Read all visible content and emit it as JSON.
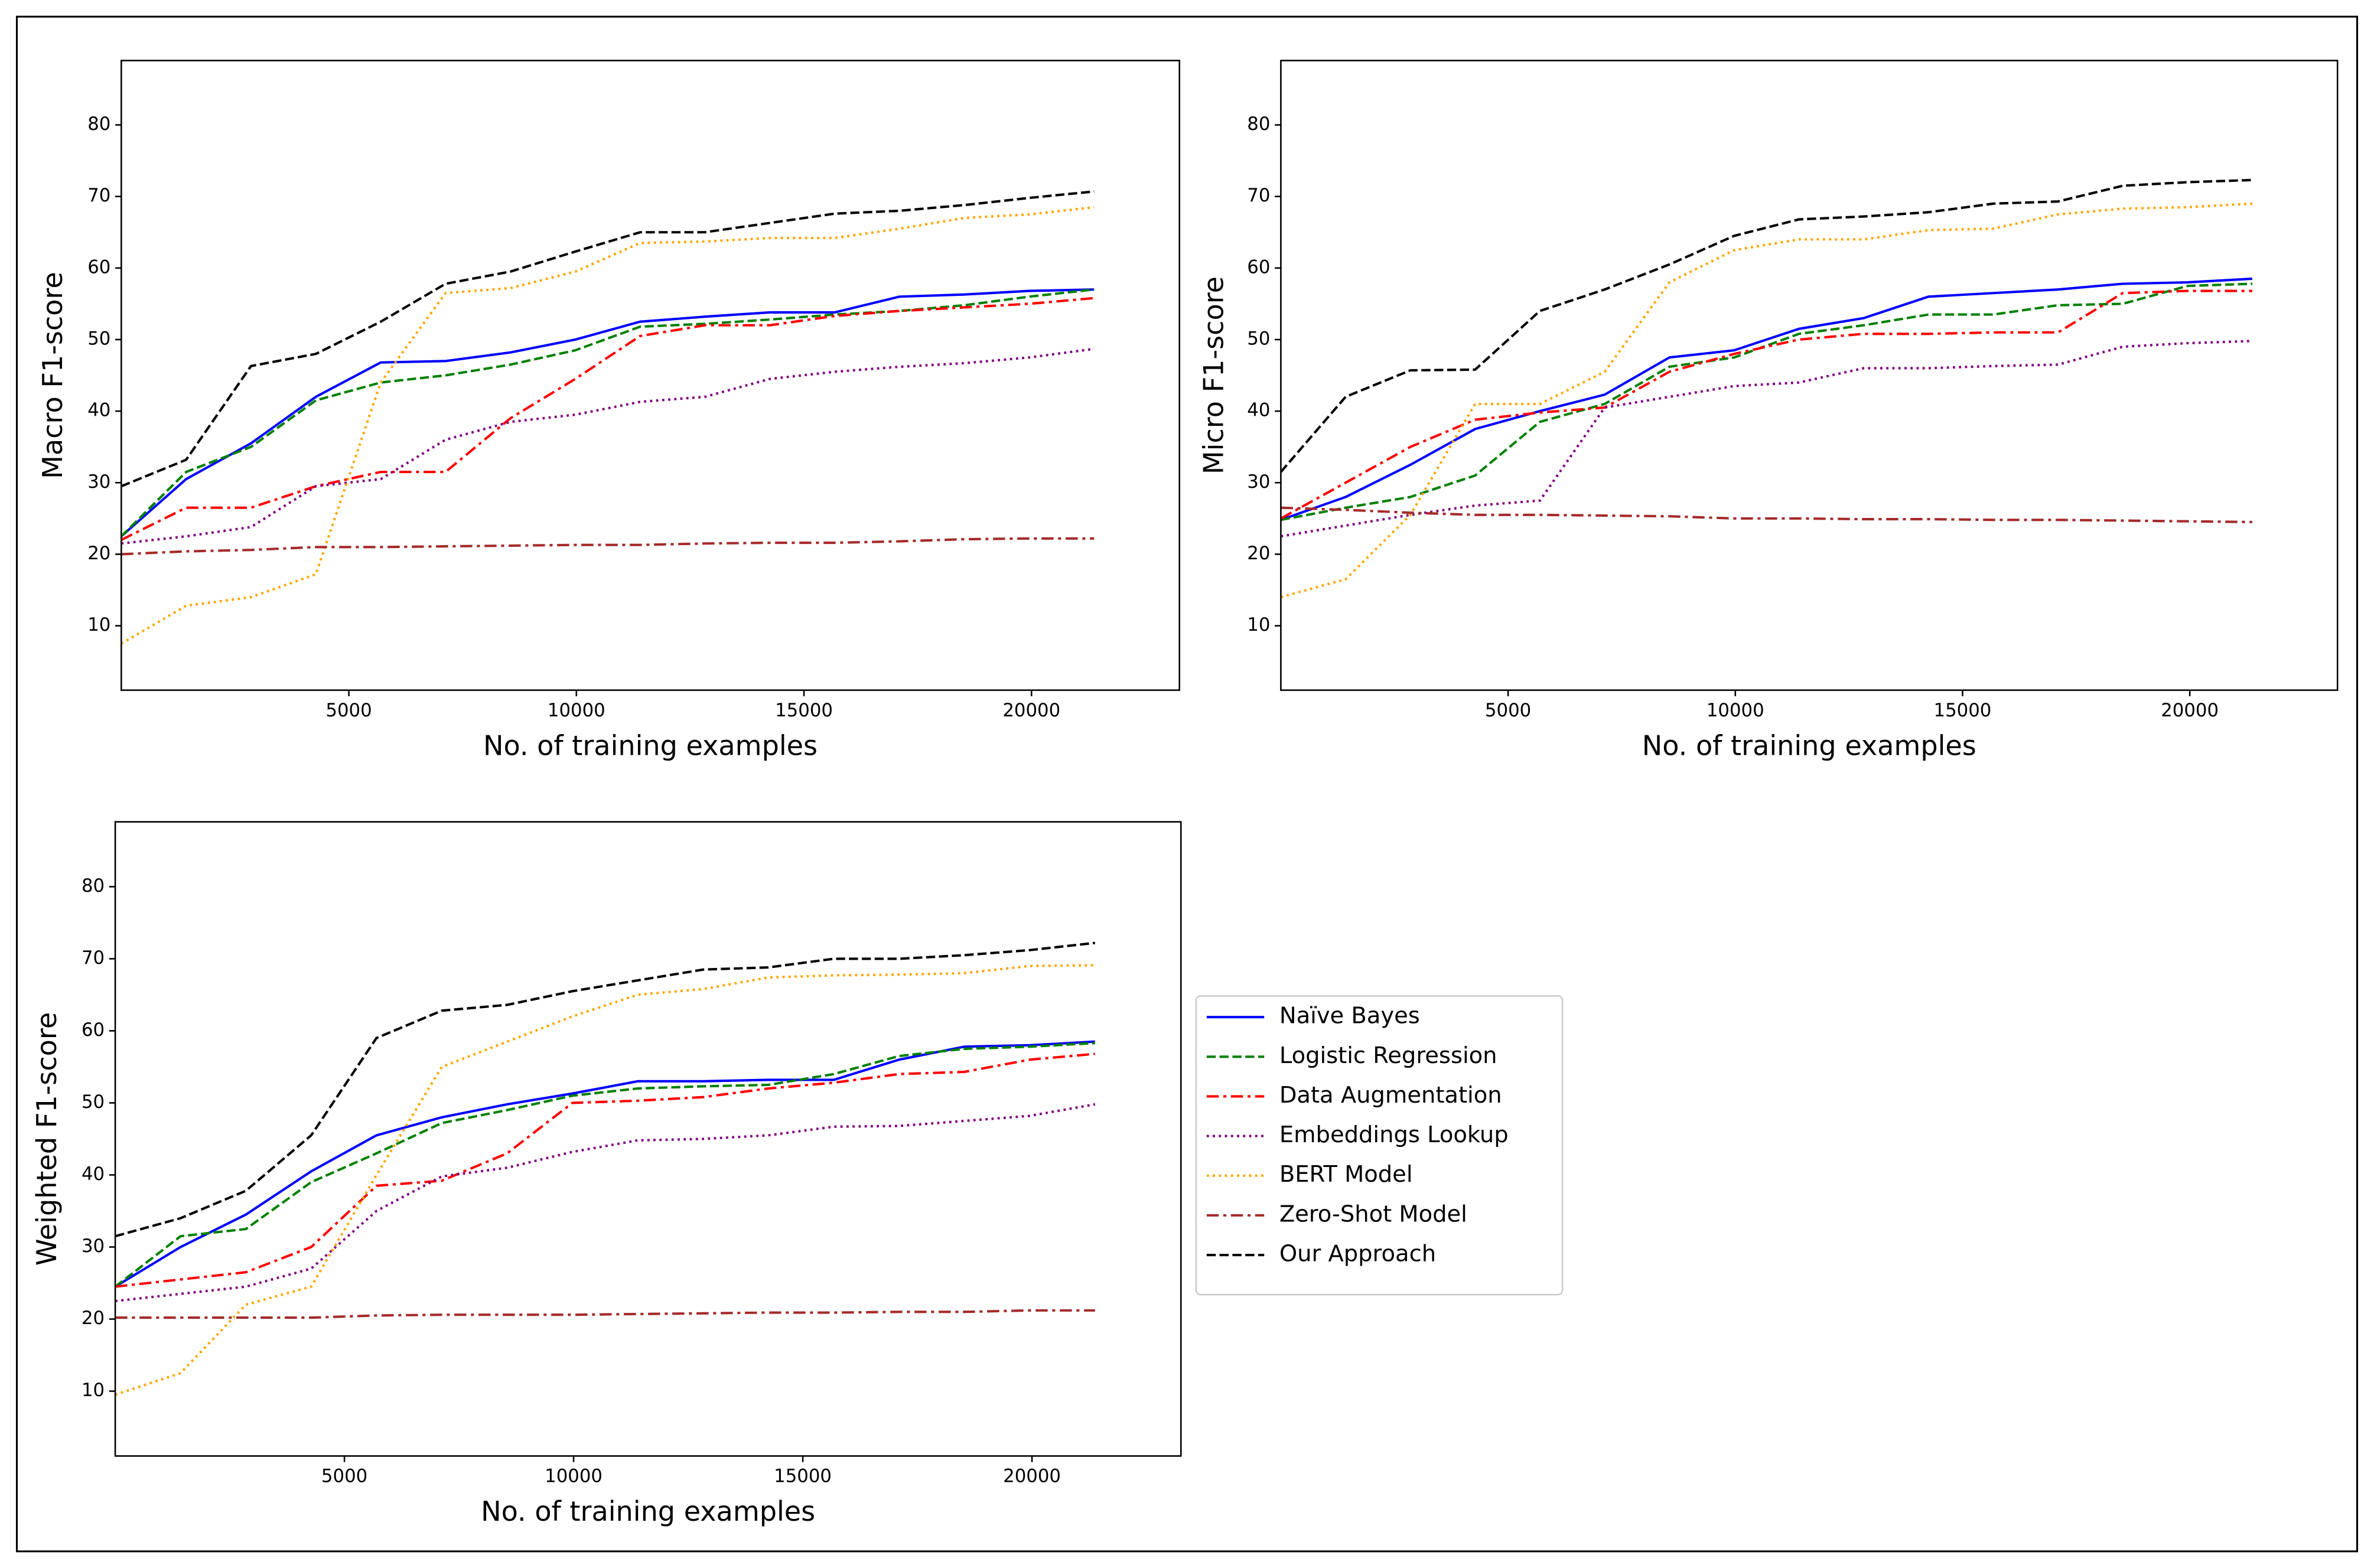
{
  "chart_data": [
    {
      "type": "line",
      "y_label": "Macro F1-score",
      "x_label": "No. of training examples",
      "x": [
        0,
        1425,
        2850,
        4275,
        5700,
        7125,
        8550,
        9975,
        11400,
        12825,
        14250,
        15675,
        17100,
        18525,
        19950,
        21375
      ],
      "xlim": [
        0,
        23250
      ],
      "ylim": [
        1,
        89
      ],
      "xticks": [
        5000,
        10000,
        15000,
        20000
      ],
      "yticks": [
        10,
        20,
        30,
        40,
        50,
        60,
        70,
        80
      ],
      "series": [
        {
          "color": "#0000ff",
          "linestyle": "solid",
          "values": [
            22.5,
            30.5,
            35.5,
            42,
            46.8,
            47,
            48.2,
            50,
            52.5,
            53.2,
            53.8,
            53.8,
            56,
            56.3,
            56.8,
            57
          ]
        },
        {
          "color": "#008000",
          "linestyle": "dashed",
          "values": [
            22.5,
            31.5,
            35,
            41.5,
            44,
            45,
            46.5,
            48.5,
            51.8,
            52.2,
            52.8,
            53.5,
            54,
            54.8,
            56,
            57
          ]
        },
        {
          "color": "#ff0000",
          "linestyle": "dashdot",
          "values": [
            22,
            26.5,
            26.5,
            29.5,
            31.5,
            31.5,
            39,
            44.5,
            50.5,
            52,
            52,
            53.3,
            54,
            54.5,
            55,
            55.8
          ]
        },
        {
          "color": "#800080",
          "linestyle": "dotted",
          "values": [
            21.5,
            22.5,
            23.8,
            29.5,
            30.5,
            36,
            38.5,
            39.5,
            41.3,
            42,
            44.5,
            45.5,
            46.2,
            46.7,
            47.5,
            48.7
          ]
        },
        {
          "color": "#ffa500",
          "linestyle": "dotted",
          "values": [
            7.5,
            12.8,
            14,
            17.2,
            44,
            56.5,
            57.2,
            59.5,
            63.5,
            63.7,
            64.2,
            64.2,
            65.5,
            67,
            67.5,
            68.5
          ]
        },
        {
          "color": "#a52a2a",
          "linestyle": "dashdot",
          "values": [
            20,
            20.4,
            20.6,
            21,
            21,
            21.1,
            21.2,
            21.3,
            21.3,
            21.5,
            21.6,
            21.6,
            21.8,
            22.1,
            22.2,
            22.2
          ]
        },
        {
          "color": "#000000",
          "linestyle": "dashed",
          "values": [
            29.5,
            33.2,
            46.3,
            48,
            52.5,
            57.8,
            59.5,
            62.3,
            65,
            65,
            66.3,
            67.6,
            68,
            68.8,
            69.8,
            70.7
          ]
        }
      ]
    },
    {
      "type": "line",
      "y_label": "Micro F1-score",
      "x_label": "No. of training examples",
      "x": [
        0,
        1425,
        2850,
        4275,
        5700,
        7125,
        8550,
        9975,
        11400,
        12825,
        14250,
        15675,
        17100,
        18525,
        19950,
        21375
      ],
      "xlim": [
        0,
        23250
      ],
      "ylim": [
        1,
        89
      ],
      "xticks": [
        5000,
        10000,
        15000,
        20000
      ],
      "yticks": [
        10,
        20,
        30,
        40,
        50,
        60,
        70,
        80
      ],
      "series": [
        {
          "color": "#0000ff",
          "linestyle": "solid",
          "values": [
            24.8,
            28,
            32.5,
            37.5,
            40,
            42.3,
            47.5,
            48.5,
            51.5,
            53,
            56,
            56.5,
            57,
            57.8,
            58,
            58.5
          ]
        },
        {
          "color": "#008000",
          "linestyle": "dashed",
          "values": [
            24.8,
            26.5,
            28,
            31,
            38.5,
            41,
            46.2,
            47.5,
            50.8,
            52,
            53.5,
            53.5,
            54.8,
            55,
            57.5,
            57.8
          ]
        },
        {
          "color": "#ff0000",
          "linestyle": "dashdot",
          "values": [
            25,
            30,
            35,
            38.8,
            39.8,
            40.5,
            45.5,
            48,
            50,
            50.8,
            50.8,
            51,
            51,
            56.5,
            56.8,
            56.8
          ]
        },
        {
          "color": "#800080",
          "linestyle": "dotted",
          "values": [
            22.5,
            24,
            25.5,
            26.8,
            27.5,
            40.5,
            42,
            43.5,
            44,
            46,
            46,
            46.3,
            46.5,
            49,
            49.5,
            49.8
          ]
        },
        {
          "color": "#ffa500",
          "linestyle": "dotted",
          "values": [
            14,
            16.5,
            25.5,
            41,
            41,
            45.5,
            58,
            62.5,
            64,
            64,
            65.3,
            65.5,
            67.5,
            68.3,
            68.5,
            69
          ]
        },
        {
          "color": "#a52a2a",
          "linestyle": "dashdot",
          "values": [
            26.5,
            26.2,
            25.8,
            25.5,
            25.5,
            25.4,
            25.3,
            25,
            25,
            24.9,
            24.9,
            24.8,
            24.8,
            24.7,
            24.6,
            24.5
          ]
        },
        {
          "color": "#000000",
          "linestyle": "dashed",
          "values": [
            31.5,
            42,
            45.7,
            45.8,
            54,
            57,
            60.5,
            64.5,
            66.8,
            67.2,
            67.8,
            69,
            69.3,
            71.5,
            72,
            72.3
          ]
        }
      ]
    },
    {
      "type": "line",
      "y_label": "Weighted F1-score",
      "x_label": "No. of training examples",
      "x": [
        0,
        1425,
        2850,
        4275,
        5700,
        7125,
        8550,
        9975,
        11400,
        12825,
        14250,
        15675,
        17100,
        18525,
        19950,
        21375
      ],
      "xlim": [
        0,
        23250
      ],
      "ylim": [
        1,
        89
      ],
      "xticks": [
        5000,
        10000,
        15000,
        20000
      ],
      "yticks": [
        10,
        20,
        30,
        40,
        50,
        60,
        70,
        80
      ],
      "series": [
        {
          "name": "Naïve Bayes",
          "color": "#0000ff",
          "linestyle": "solid",
          "values": [
            24.5,
            30,
            34.5,
            40.5,
            45.5,
            48,
            49.8,
            51.3,
            53,
            53,
            53.2,
            53.2,
            56,
            57.8,
            58,
            58.5
          ]
        },
        {
          "name": "Logistic Regression",
          "color": "#008000",
          "linestyle": "dashed",
          "values": [
            24.5,
            31.5,
            32.5,
            39,
            43,
            47.2,
            49,
            51,
            52,
            52.3,
            52.5,
            54,
            56.5,
            57.5,
            57.8,
            58.3
          ]
        },
        {
          "name": "Data Augmentation",
          "color": "#ff0000",
          "linestyle": "dashdot",
          "values": [
            24.5,
            25.5,
            26.5,
            30,
            38.5,
            39.2,
            43,
            50,
            50.3,
            50.8,
            52,
            52.8,
            54,
            54.3,
            56,
            56.8
          ]
        },
        {
          "name": "Embeddings Lookup",
          "color": "#800080",
          "linestyle": "dotted",
          "values": [
            22.5,
            23.5,
            24.5,
            27,
            35,
            39.8,
            41,
            43.2,
            44.8,
            45,
            45.5,
            46.7,
            46.8,
            47.5,
            48.2,
            49.8
          ]
        },
        {
          "name": "BERT Model",
          "color": "#ffa500",
          "linestyle": "dotted",
          "values": [
            9.5,
            12.5,
            22,
            24.5,
            40,
            55,
            58.5,
            62,
            65,
            65.8,
            67.4,
            67.7,
            67.8,
            68,
            69,
            69.1
          ]
        },
        {
          "name": "Zero-Shot Model",
          "color": "#a52a2a",
          "linestyle": "dashdot",
          "values": [
            20.2,
            20.2,
            20.2,
            20.2,
            20.5,
            20.6,
            20.6,
            20.6,
            20.7,
            20.8,
            20.9,
            20.9,
            21,
            21,
            21.2,
            21.2
          ]
        },
        {
          "name": "Our Approach",
          "color": "#000000",
          "linestyle": "dashed",
          "values": [
            31.5,
            34,
            37.8,
            45.5,
            59,
            62.8,
            63.6,
            65.5,
            67,
            68.5,
            68.8,
            70,
            70,
            70.5,
            71.2,
            72.2
          ]
        }
      ]
    }
  ]
}
